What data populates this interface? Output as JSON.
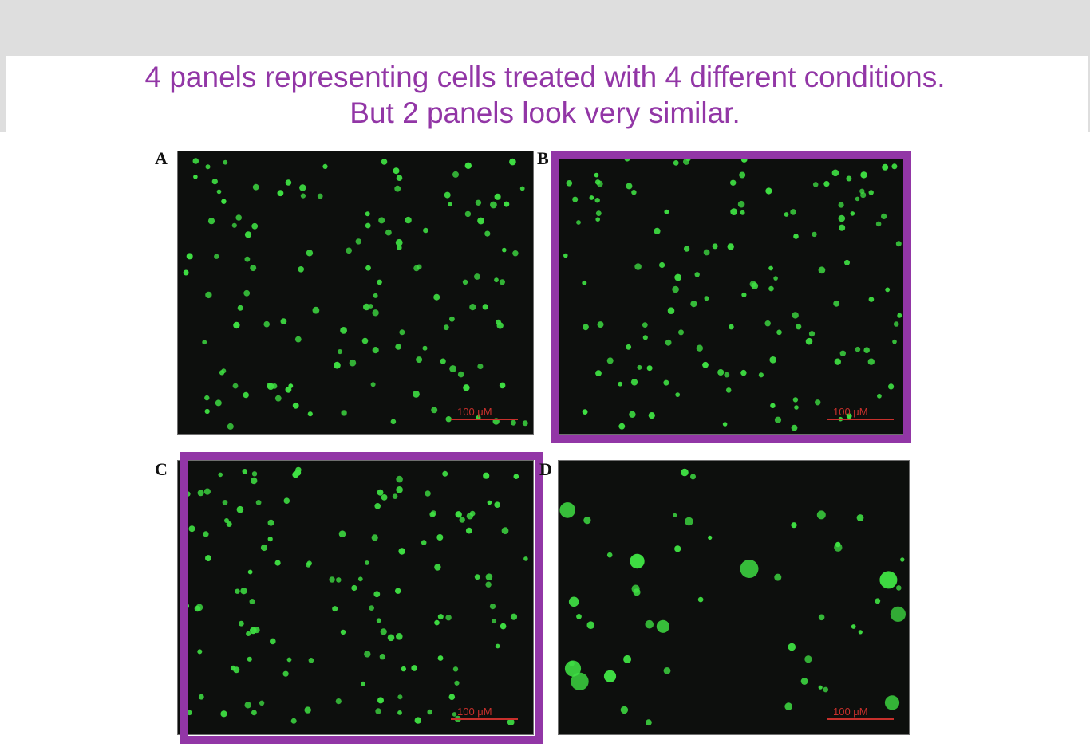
{
  "slide": {
    "caption_line1": "4 panels representing cells treated with 4 different conditions.",
    "caption_line2": "But 2 panels look very similar.",
    "caption_color": "#9236a6",
    "highlight_color": "#9236a6"
  },
  "figure": {
    "background_color": "#0d0f0d",
    "cell_color": "#3fe043",
    "scale_bar_color": "#c7302c",
    "panels": [
      {
        "letter": "A",
        "scale_bar_label": "100 μM",
        "highlighted": false,
        "cell_morphology": "small round"
      },
      {
        "letter": "B",
        "scale_bar_label": "100 μM",
        "highlighted": true,
        "cell_morphology": "small round"
      },
      {
        "letter": "C",
        "scale_bar_label": "100 μM",
        "highlighted": true,
        "cell_morphology": "small round"
      },
      {
        "letter": "D",
        "scale_bar_label": "100 μM",
        "highlighted": false,
        "cell_morphology": "large clustered"
      }
    ]
  }
}
